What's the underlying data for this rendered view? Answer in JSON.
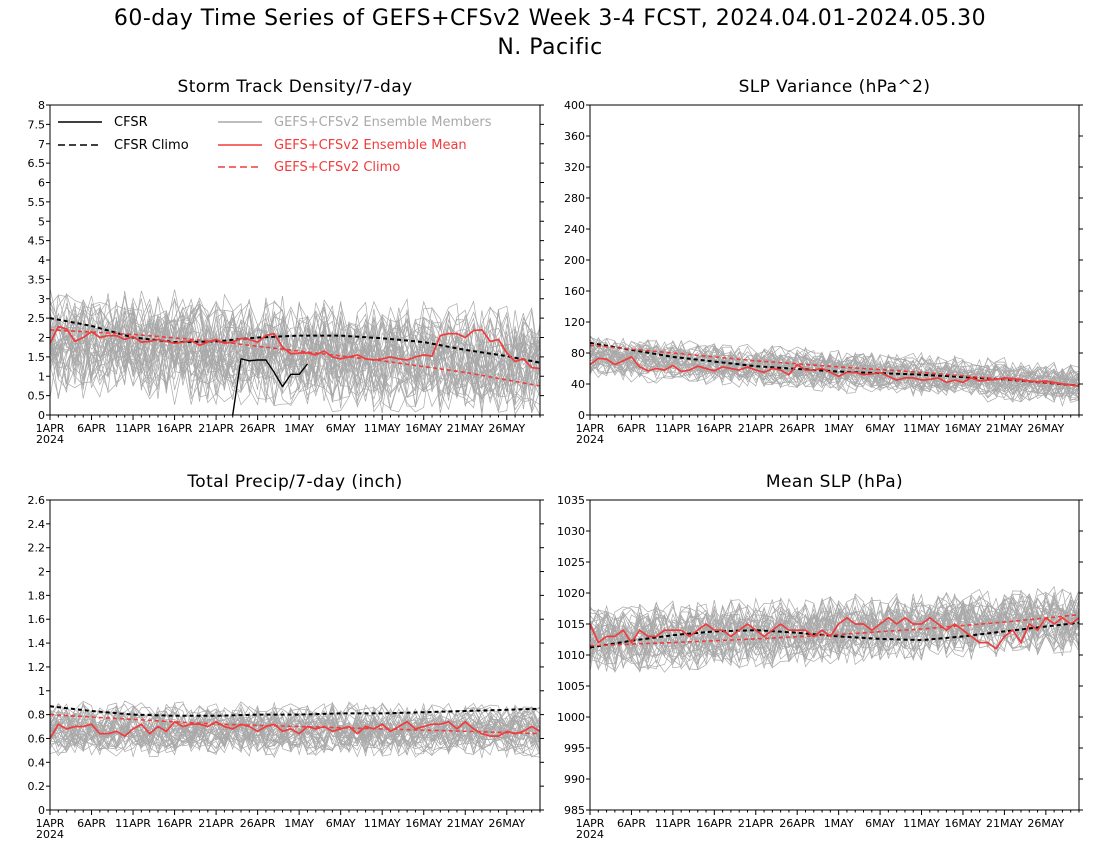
{
  "page": {
    "title_line1": "60-day Time Series of GEFS+CFSv2 Week 3-4 FCST, 2024.04.01-2024.05.30",
    "title_line2": "N. Pacific"
  },
  "colors": {
    "observed": "#000000",
    "members": "#a9a9a9",
    "ensemble_mean": "#f03c3c",
    "model_climo": "#f03c3c"
  },
  "x_axis": {
    "start": "2024-04-01",
    "days": 60,
    "tick_labels": [
      "1APR",
      "6APR",
      "11APR",
      "16APR",
      "21APR",
      "26APR",
      "1MAY",
      "6MAY",
      "11MAY",
      "16MAY",
      "21MAY",
      "26MAY"
    ],
    "tick_days": [
      0,
      5,
      10,
      15,
      20,
      25,
      30,
      35,
      40,
      45,
      50,
      55
    ],
    "year_label": "2024"
  },
  "legend": {
    "cfsr": "CFSR",
    "cfsr_climo": "CFSR Climo",
    "members": "GEFS+CFSv2 Ensemble Members",
    "ens_mean": "GEFS+CFSv2 Ensemble Mean",
    "gefs_climo": "GEFS+CFSv2 Climo"
  },
  "chart_data": [
    {
      "type": "line",
      "title": "Storm Track Density/7-day",
      "ylim": [
        0,
        8
      ],
      "y_ticks": [
        "0",
        "0.5",
        "1",
        "1.5",
        "2",
        "2.5",
        "3",
        "3.5",
        "4",
        "4.5",
        "5",
        "5.5",
        "6",
        "6.5",
        "7",
        "7.5",
        "8"
      ],
      "members": {
        "count": 40,
        "center": [
          1.9,
          1.4
        ],
        "spread": 1.3
      },
      "series": [
        {
          "name": "CFSR",
          "x": [
            22,
            23,
            24,
            25,
            26,
            27,
            28,
            29,
            30,
            31
          ],
          "y": [
            0.0,
            1.45,
            1.4,
            1.42,
            1.42,
            1.1,
            0.73,
            1.05,
            1.05,
            1.32
          ]
        },
        {
          "name": "CFSR Climo",
          "x": [
            0,
            5,
            10,
            15,
            20,
            25,
            30,
            35,
            40,
            45,
            50,
            55,
            59
          ],
          "y": [
            2.5,
            2.3,
            2.0,
            1.88,
            1.9,
            2.0,
            2.05,
            2.05,
            1.98,
            1.88,
            1.68,
            1.52,
            1.35
          ]
        },
        {
          "name": "GEFS+CFSv2 Ensemble Mean",
          "x": [
            0,
            1,
            2,
            3,
            4,
            5,
            6,
            7,
            8,
            9,
            10,
            11,
            12,
            13,
            14,
            15,
            16,
            17,
            18,
            19,
            20,
            21,
            22,
            23,
            24,
            25,
            26,
            27,
            28,
            29,
            30,
            31,
            32,
            33,
            34,
            35,
            36,
            37,
            38,
            39,
            40,
            41,
            42,
            43,
            44,
            45,
            46,
            47,
            48,
            49,
            50,
            51,
            52,
            53,
            54,
            55,
            56,
            57,
            58,
            59
          ],
          "y": [
            1.85,
            2.28,
            2.22,
            1.9,
            2.0,
            2.15,
            2.0,
            2.05,
            2.05,
            1.95,
            2.02,
            1.88,
            1.9,
            1.95,
            1.9,
            1.85,
            1.88,
            1.92,
            1.8,
            1.88,
            1.95,
            1.85,
            1.88,
            1.98,
            1.95,
            1.88,
            2.05,
            2.1,
            1.75,
            1.58,
            1.6,
            1.6,
            1.55,
            1.65,
            1.5,
            1.45,
            1.5,
            1.55,
            1.45,
            1.42,
            1.45,
            1.5,
            1.45,
            1.42,
            1.5,
            1.55,
            1.52,
            2.05,
            2.1,
            2.1,
            2.0,
            2.18,
            2.2,
            1.9,
            1.95,
            1.6,
            1.38,
            1.45,
            1.22,
            1.2
          ]
        },
        {
          "name": "GEFS+CFSv2 Climo",
          "x": [
            0,
            10,
            20,
            30,
            40,
            50,
            59
          ],
          "y": [
            2.2,
            2.08,
            1.9,
            1.65,
            1.4,
            1.1,
            0.75
          ]
        }
      ]
    },
    {
      "type": "line",
      "title": "SLP Variance (hPa^2)",
      "ylim": [
        0,
        400
      ],
      "y_ticks": [
        "0",
        "40",
        "80",
        "120",
        "160",
        "200",
        "240",
        "280",
        "320",
        "360",
        "400"
      ],
      "members": {
        "count": 40,
        "center": [
          75,
          40
        ],
        "spread": 25
      },
      "series": [
        {
          "name": "CFSR Climo",
          "x": [
            0,
            10,
            20,
            30,
            40,
            50,
            59
          ],
          "y": [
            93,
            75,
            63,
            56,
            52,
            46,
            38
          ]
        },
        {
          "name": "GEFS+CFSv2 Ensemble Mean",
          "x": [
            0,
            1,
            2,
            3,
            4,
            5,
            6,
            7,
            8,
            9,
            10,
            11,
            12,
            13,
            14,
            15,
            16,
            17,
            18,
            19,
            20,
            21,
            22,
            23,
            24,
            25,
            26,
            27,
            28,
            29,
            30,
            31,
            32,
            33,
            34,
            35,
            36,
            37,
            38,
            39,
            40,
            41,
            42,
            43,
            44,
            45,
            46,
            47,
            48,
            49,
            50,
            51,
            52,
            53,
            54,
            55,
            56,
            57,
            58,
            59
          ],
          "y": [
            65,
            73,
            72,
            65,
            70,
            75,
            62,
            57,
            60,
            58,
            64,
            56,
            58,
            63,
            60,
            57,
            62,
            60,
            58,
            62,
            58,
            55,
            60,
            58,
            52,
            65,
            58,
            58,
            60,
            55,
            50,
            55,
            55,
            52,
            53,
            55,
            50,
            45,
            48,
            48,
            45,
            46,
            48,
            42,
            45,
            42,
            48,
            44,
            45,
            46,
            48,
            47,
            46,
            44,
            43,
            44,
            42,
            40,
            39,
            37
          ]
        },
        {
          "name": "GEFS+CFSv2 Climo",
          "x": [
            0,
            10,
            20,
            30,
            40,
            50,
            59
          ],
          "y": [
            90,
            80,
            70,
            62,
            55,
            46,
            38
          ]
        }
      ]
    },
    {
      "type": "line",
      "title": "Total Precip/7-day (inch)",
      "ylim": [
        0,
        2.6
      ],
      "y_ticks": [
        "0",
        "0.2",
        "0.4",
        "0.6",
        "0.8",
        "1",
        "1.2",
        "1.4",
        "1.6",
        "1.8",
        "2",
        "2.2",
        "2.4",
        "2.6"
      ],
      "members": {
        "count": 40,
        "center": [
          0.68,
          0.66
        ],
        "spread": 0.2
      },
      "series": [
        {
          "name": "CFSR Climo",
          "x": [
            0,
            5,
            10,
            15,
            20,
            25,
            30,
            35,
            40,
            45,
            50,
            55,
            59
          ],
          "y": [
            0.87,
            0.83,
            0.8,
            0.79,
            0.79,
            0.8,
            0.8,
            0.81,
            0.81,
            0.82,
            0.83,
            0.84,
            0.85
          ]
        },
        {
          "name": "GEFS+CFSv2 Ensemble Mean",
          "x": [
            0,
            1,
            2,
            3,
            4,
            5,
            6,
            7,
            8,
            9,
            10,
            11,
            12,
            13,
            14,
            15,
            16,
            17,
            18,
            19,
            20,
            21,
            22,
            23,
            24,
            25,
            26,
            27,
            28,
            29,
            30,
            31,
            32,
            33,
            34,
            35,
            36,
            37,
            38,
            39,
            40,
            41,
            42,
            43,
            44,
            45,
            46,
            47,
            48,
            49,
            50,
            51,
            52,
            53,
            54,
            55,
            56,
            57,
            58,
            59
          ],
          "y": [
            0.6,
            0.72,
            0.68,
            0.7,
            0.7,
            0.72,
            0.64,
            0.64,
            0.66,
            0.62,
            0.68,
            0.72,
            0.64,
            0.7,
            0.66,
            0.74,
            0.7,
            0.72,
            0.72,
            0.7,
            0.74,
            0.7,
            0.68,
            0.72,
            0.7,
            0.66,
            0.7,
            0.72,
            0.66,
            0.68,
            0.64,
            0.7,
            0.68,
            0.7,
            0.66,
            0.68,
            0.7,
            0.64,
            0.7,
            0.68,
            0.72,
            0.66,
            0.7,
            0.74,
            0.68,
            0.7,
            0.72,
            0.72,
            0.74,
            0.68,
            0.74,
            0.68,
            0.64,
            0.62,
            0.62,
            0.66,
            0.64,
            0.66,
            0.7,
            0.66
          ]
        },
        {
          "name": "GEFS+CFSv2 Climo",
          "x": [
            0,
            10,
            20,
            30,
            40,
            50,
            59
          ],
          "y": [
            0.8,
            0.76,
            0.72,
            0.7,
            0.68,
            0.66,
            0.64
          ]
        }
      ]
    },
    {
      "type": "line",
      "title": "Mean SLP (hPa)",
      "ylim": [
        985,
        1035
      ],
      "y_ticks": [
        "985",
        "990",
        "995",
        "1000",
        "1005",
        "1010",
        "1015",
        "1020",
        "1025",
        "1030",
        "1035"
      ],
      "members": {
        "count": 40,
        "center": [
          1012.5,
          1015.5
        ],
        "spread": 5
      },
      "series": [
        {
          "name": "CFSR Climo",
          "x": [
            0,
            5,
            10,
            15,
            20,
            25,
            30,
            35,
            40,
            45,
            50,
            55,
            59
          ],
          "y": [
            1011.2,
            1012.3,
            1013.2,
            1013.8,
            1014.0,
            1013.6,
            1013.0,
            1012.6,
            1012.4,
            1013.0,
            1013.8,
            1014.6,
            1015.2
          ]
        },
        {
          "name": "GEFS+CFSv2 Ensemble Mean",
          "x": [
            0,
            1,
            2,
            3,
            4,
            5,
            6,
            7,
            8,
            9,
            10,
            11,
            12,
            13,
            14,
            15,
            16,
            17,
            18,
            19,
            20,
            21,
            22,
            23,
            24,
            25,
            26,
            27,
            28,
            29,
            30,
            31,
            32,
            33,
            34,
            35,
            36,
            37,
            38,
            39,
            40,
            41,
            42,
            43,
            44,
            45,
            46,
            47,
            48,
            49,
            50,
            51,
            52,
            53,
            54,
            55,
            56,
            57,
            58,
            59
          ],
          "y": [
            1015,
            1012,
            1013,
            1013,
            1014,
            1012,
            1014,
            1013,
            1013,
            1014,
            1014,
            1014,
            1013,
            1014,
            1015,
            1014,
            1014,
            1013,
            1014,
            1015,
            1014,
            1013,
            1014,
            1015,
            1014,
            1014,
            1014,
            1013,
            1014,
            1013,
            1015,
            1016,
            1015,
            1015,
            1014,
            1015,
            1016,
            1015,
            1016,
            1015,
            1015,
            1016,
            1015,
            1014,
            1015,
            1014,
            1013,
            1012,
            1012,
            1011,
            1013,
            1014,
            1012,
            1015,
            1014,
            1016,
            1015,
            1016,
            1015,
            1016
          ]
        },
        {
          "name": "GEFS+CFSv2 Climo",
          "x": [
            0,
            10,
            20,
            30,
            40,
            50,
            59
          ],
          "y": [
            1011.5,
            1012.0,
            1012.6,
            1013.3,
            1014.2,
            1015.3,
            1016.5
          ]
        }
      ]
    }
  ]
}
